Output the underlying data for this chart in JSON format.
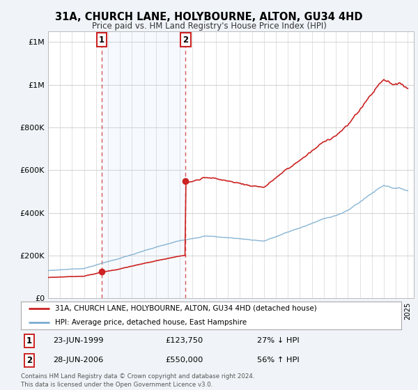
{
  "title": "31A, CHURCH LANE, HOLYBOURNE, ALTON, GU34 4HD",
  "subtitle": "Price paid vs. HM Land Registry's House Price Index (HPI)",
  "legend_line1": "31A, CHURCH LANE, HOLYBOURNE, ALTON, GU34 4HD (detached house)",
  "legend_line2": "HPI: Average price, detached house, East Hampshire",
  "annotation1_date": "23-JUN-1999",
  "annotation1_price": "£123,750",
  "annotation1_hpi": "27% ↓ HPI",
  "annotation1_year": 1999.47,
  "annotation1_value": 123750,
  "annotation2_date": "28-JUN-2006",
  "annotation2_price": "£550,000",
  "annotation2_hpi": "56% ↑ HPI",
  "annotation2_year": 2006.47,
  "annotation2_value": 550000,
  "footer": "Contains HM Land Registry data © Crown copyright and database right 2024.\nThis data is licensed under the Open Government Licence v3.0.",
  "hpi_color": "#7aadcf",
  "price_color": "#cc2222",
  "background_color": "#f0f4f8",
  "plot_bg_color": "#ffffff",
  "ylim_max": 1250000,
  "xmin": 1995,
  "xmax": 2025.5
}
